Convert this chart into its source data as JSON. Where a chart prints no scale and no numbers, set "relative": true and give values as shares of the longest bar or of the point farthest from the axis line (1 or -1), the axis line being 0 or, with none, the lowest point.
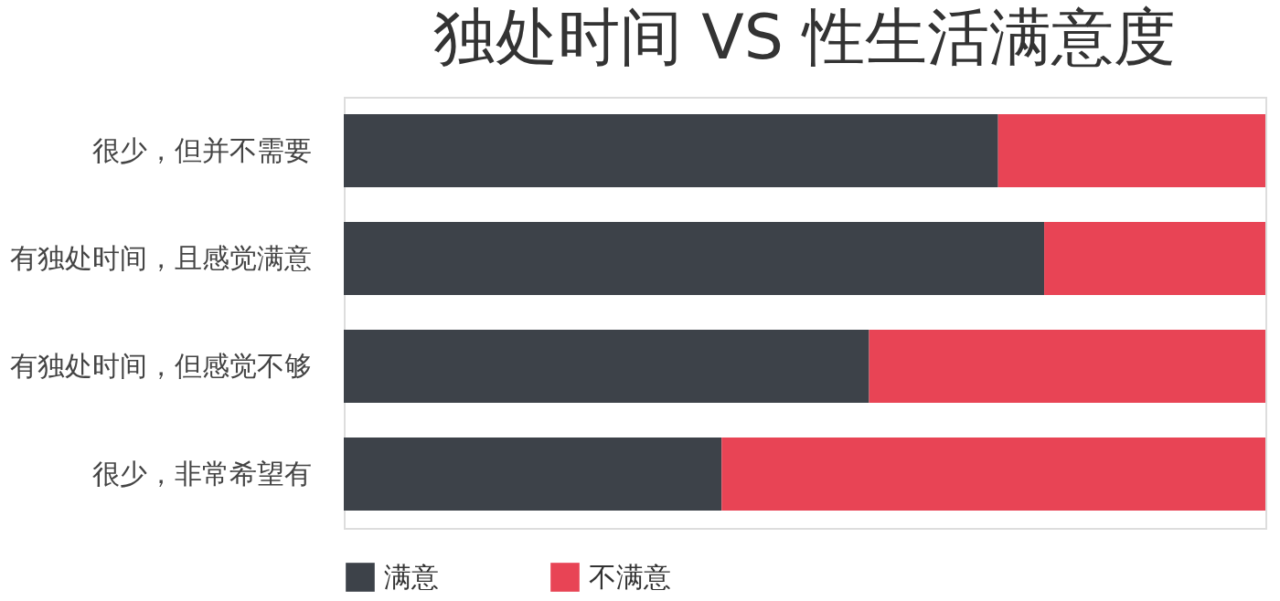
{
  "chart_data": {
    "type": "bar",
    "title": "独处时间 VS 性生活满意度",
    "orientation": "horizontal",
    "stacked": true,
    "relative": true,
    "legend": "bottom",
    "grid": false,
    "categories": [
      "很少，但并不需要",
      "有独处时间，且感觉满意",
      "有独处时间，但感觉不够",
      "很少，非常希望有"
    ],
    "series": [
      {
        "name": "满意",
        "color": "#3d4249",
        "values": [
          0.71,
          0.76,
          0.57,
          0.41
        ]
      },
      {
        "name": "不满意",
        "color": "#e84455",
        "values": [
          0.29,
          0.24,
          0.43,
          0.59
        ]
      }
    ]
  }
}
